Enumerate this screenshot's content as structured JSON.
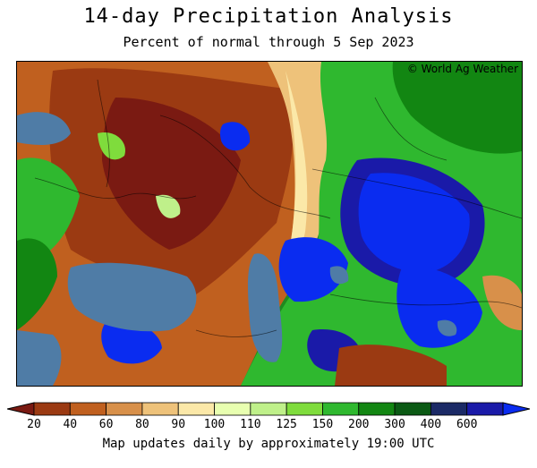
{
  "title": "14-day Precipitation Analysis",
  "subtitle": "Percent of normal through 5 Sep 2023",
  "credit": "© World Ag Weather",
  "footer": "Map updates daily by approximately 19:00 UTC",
  "legend": {
    "colors": [
      "#7a1a12",
      "#9b3a12",
      "#c0601f",
      "#d8904a",
      "#eec27a",
      "#fbe8a8",
      "#e8ffb0",
      "#bff08a",
      "#7fdc3c",
      "#2fb82f",
      "#128612",
      "#0b5a14",
      "#1b2a66",
      "#1a1aa8",
      "#0a2cf0"
    ],
    "ticks": [
      "20",
      "40",
      "60",
      "80",
      "90",
      "100",
      "110",
      "125",
      "150",
      "200",
      "300",
      "400",
      "600"
    ]
  },
  "map": {
    "water_color": "#4f7ca6",
    "land_base_color": "#1f8a1f"
  }
}
